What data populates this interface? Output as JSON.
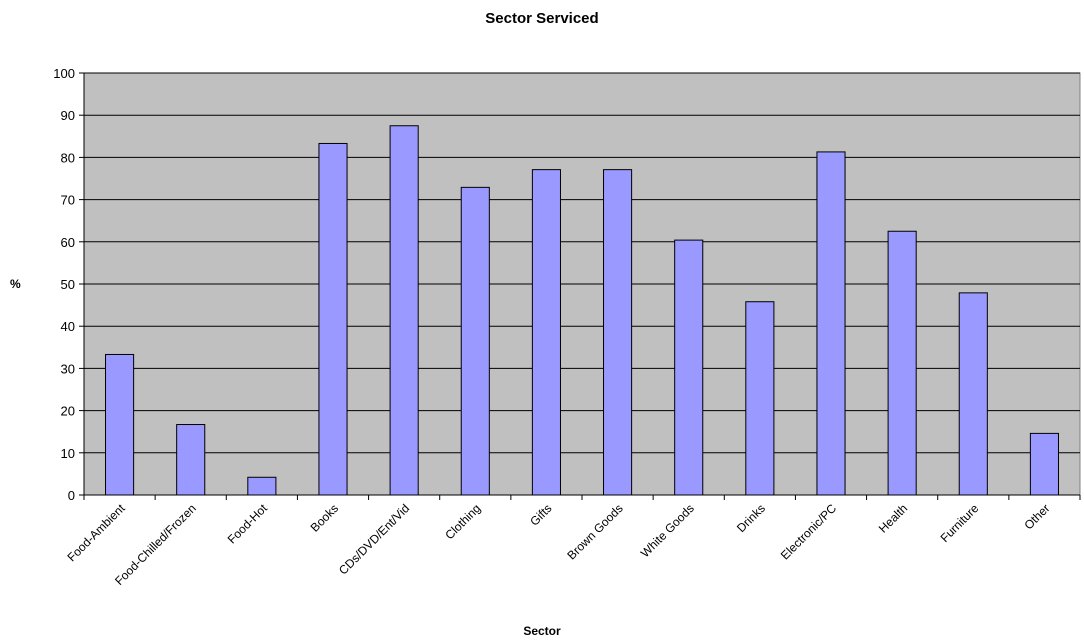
{
  "chart_data": {
    "type": "bar",
    "title": "Sector Serviced",
    "xlabel": "Sector",
    "ylabel": "%",
    "ylim": [
      0,
      100
    ],
    "yticks": [
      "0",
      "10",
      "20",
      "30",
      "40",
      "50",
      "60",
      "70",
      "80",
      "90",
      "100"
    ],
    "grid": true,
    "categories": [
      "Food-Ambient",
      "Food-Chilled/Frozen",
      "Food-Hot",
      "Books",
      "CDs/DVD/Ent/Vid",
      "Clothing",
      "Gifts",
      "Brown Goods",
      "White Goods",
      "Drinks",
      "Electronic/PC",
      "Health",
      "Furniture",
      "Other"
    ],
    "values": [
      33.3,
      16.7,
      4.2,
      83.3,
      87.5,
      72.9,
      77.1,
      77.1,
      60.4,
      45.8,
      81.3,
      62.5,
      47.9,
      14.6
    ],
    "colors": {
      "bar": "#9999ff",
      "plot_background": "#c0c0c0",
      "gridline": "#000000"
    }
  }
}
